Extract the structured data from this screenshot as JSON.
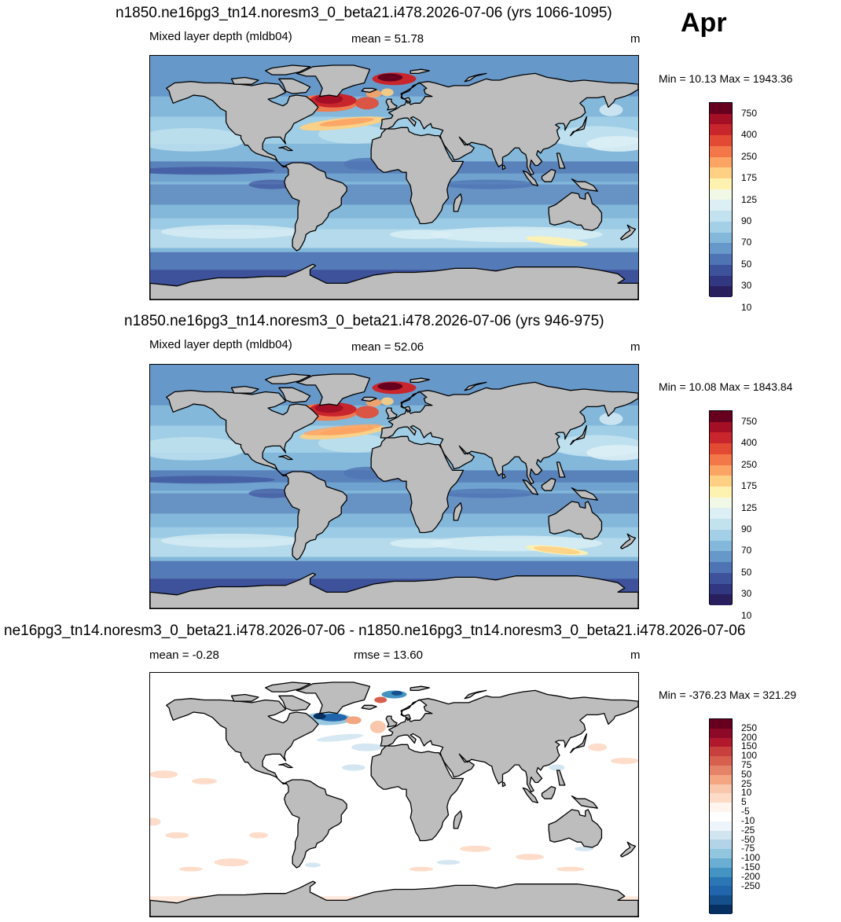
{
  "month": "Apr",
  "panels": [
    {
      "title": "n1850.ne16pg3_tn14.noresm3_0_beta21.i478.2026-07-06 (yrs 1066-1095)",
      "variable": "Mixed layer depth (mldb04)",
      "left_stat": "mean =  51.78",
      "mid_stat": "",
      "units": "m",
      "minmax": "Min =  10.13 Max = 1943.36",
      "kind": "absolute"
    },
    {
      "title": "n1850.ne16pg3_tn14.noresm3_0_beta21.i478.2026-07-06 (yrs 946-975)",
      "variable": "Mixed layer depth (mldb04)",
      "left_stat": "mean =  52.06",
      "mid_stat": "",
      "units": "m",
      "minmax": "Min =  10.08 Max = 1843.84",
      "kind": "absolute"
    },
    {
      "title": "ne16pg3_tn14.noresm3_0_beta21.i478.2026-07-06 - n1850.ne16pg3_tn14.noresm3_0_beta21.i478.2026-07-06",
      "variable": "",
      "left_stat": "mean =  -0.28",
      "mid_stat": "rmse =  13.60",
      "units": "m",
      "minmax": "Min = -376.23 Max = 321.29",
      "kind": "difference"
    }
  ],
  "colorbar_absolute": {
    "labels": [
      "750",
      "400",
      "250",
      "175",
      "125",
      "90",
      "70",
      "50",
      "30",
      "10"
    ],
    "colors": [
      "#67001f",
      "#a50f26",
      "#c8262c",
      "#e34a33",
      "#f4774a",
      "#fca464",
      "#fdd083",
      "#fff2b0",
      "#f1f9e6",
      "#dbeff5",
      "#c2e2ef",
      "#a3d0e7",
      "#83b8da",
      "#6698c9",
      "#4f74b3",
      "#3e529c",
      "#313780",
      "#2a1f5e"
    ]
  },
  "colorbar_difference": {
    "labels": [
      "250",
      "200",
      "150",
      "100",
      "75",
      "50",
      "25",
      "10",
      "5",
      "-5",
      "-10",
      "-25",
      "-50",
      "-75",
      "-100",
      "-150",
      "-200",
      "-250"
    ],
    "colors": [
      "#67001f",
      "#8c0a28",
      "#b2182b",
      "#c8403e",
      "#d6604d",
      "#e58368",
      "#f4a582",
      "#f9c8ac",
      "#fddbc7",
      "#fff5ee",
      "#ffffff",
      "#eef5fa",
      "#d1e5f0",
      "#b3d4e8",
      "#92c5de",
      "#6aaed3",
      "#4393c3",
      "#2b76b5",
      "#2166ac",
      "#15508c",
      "#053061"
    ]
  }
}
